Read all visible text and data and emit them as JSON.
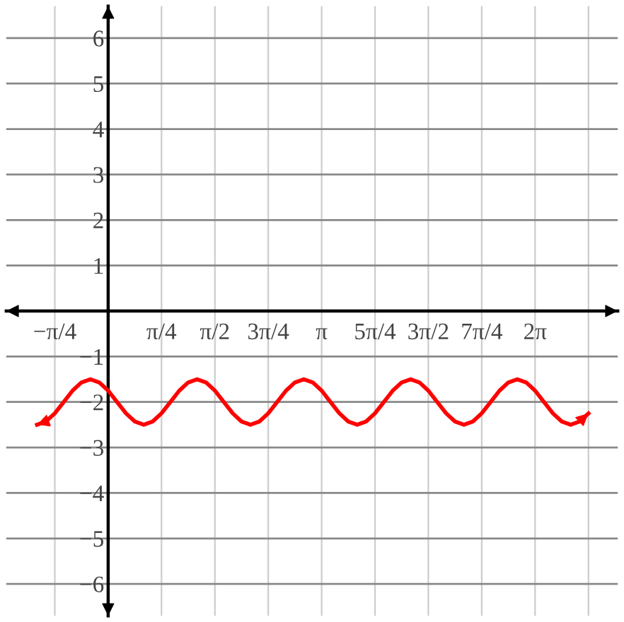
{
  "chart_data": {
    "type": "line",
    "x": [
      -1.047,
      -0.916,
      -0.785,
      -0.654,
      -0.524,
      -0.393,
      -0.262,
      -0.131,
      0,
      0.131,
      0.262,
      0.393,
      0.524,
      0.654,
      0.785,
      0.916,
      1.047,
      1.178,
      1.309,
      1.44,
      1.571,
      1.702,
      1.833,
      1.963,
      2.094,
      2.225,
      2.356,
      2.487,
      2.618,
      2.749,
      2.88,
      3.011,
      3.142,
      3.272,
      3.403,
      3.534,
      3.665,
      3.796,
      3.927,
      4.058,
      4.189,
      4.32,
      4.451,
      4.581,
      4.712,
      4.843,
      4.974,
      5.105,
      5.236,
      5.367,
      5.498,
      5.629,
      5.76,
      5.89,
      6.021,
      6.152,
      6.283,
      6.414,
      6.545,
      6.676,
      6.807,
      6.938,
      7.069
    ],
    "series": [
      {
        "color": "#ff0000",
        "values": [
          -2.5,
          -2.43,
          -2.25,
          -2,
          -1.75,
          -1.57,
          -1.5,
          -1.57,
          -1.75,
          -2,
          -2.25,
          -2.43,
          -2.5,
          -2.43,
          -2.25,
          -2,
          -1.75,
          -1.57,
          -1.5,
          -1.57,
          -1.75,
          -2,
          -2.25,
          -2.43,
          -2.5,
          -2.43,
          -2.25,
          -2,
          -1.75,
          -1.57,
          -1.5,
          -1.57,
          -1.75,
          -2,
          -2.25,
          -2.43,
          -2.5,
          -2.43,
          -2.25,
          -2,
          -1.75,
          -1.57,
          -1.5,
          -1.57,
          -1.75,
          -2,
          -2.25,
          -2.43,
          -2.5,
          -2.43,
          -2.25,
          -2,
          -1.75,
          -1.57,
          -1.5,
          -1.57,
          -1.75,
          -2,
          -2.25,
          -2.43,
          -2.5,
          -2.43,
          -2.25
        ]
      }
    ],
    "xlim": [
      -1.5,
      7.5
    ],
    "ylim": [
      -6.7,
      6.7
    ],
    "xticks": [
      {
        "value": -0.785,
        "label": "−π/4"
      },
      {
        "value": 0.785,
        "label": "π/4"
      },
      {
        "value": 1.571,
        "label": "π/2"
      },
      {
        "value": 2.356,
        "label": "3π/4"
      },
      {
        "value": 3.142,
        "label": "π"
      },
      {
        "value": 3.927,
        "label": "5π/4"
      },
      {
        "value": 4.712,
        "label": "3π/2"
      },
      {
        "value": 5.498,
        "label": "7π/4"
      },
      {
        "value": 6.283,
        "label": "2π"
      },
      {
        "value": 7.069,
        "label": null
      }
    ],
    "yticks": [
      {
        "value": -6,
        "label": "−6"
      },
      {
        "value": -5,
        "label": "−5"
      },
      {
        "value": -4,
        "label": "−4"
      },
      {
        "value": -3,
        "label": "−3"
      },
      {
        "value": -2,
        "label": "−2"
      },
      {
        "value": -1,
        "label": "−1"
      },
      1,
      2,
      3,
      4,
      5,
      6
    ],
    "grid": true,
    "marker": "none",
    "line_style": "solid"
  }
}
